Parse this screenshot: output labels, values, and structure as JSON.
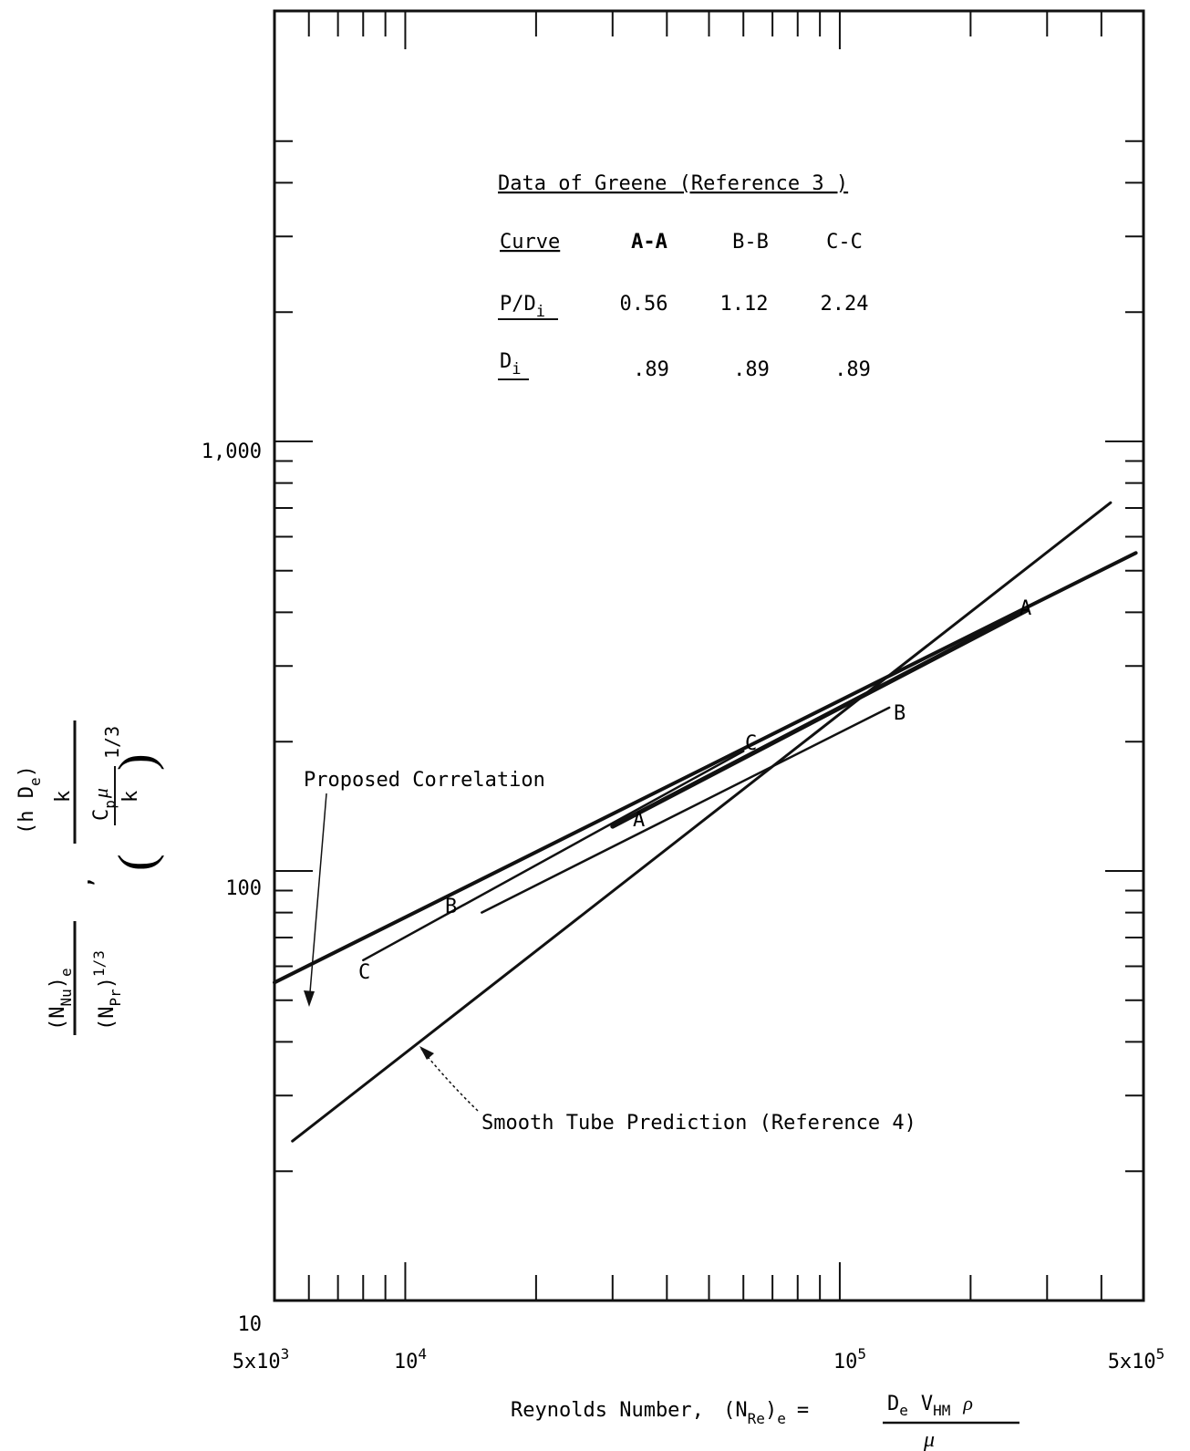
{
  "chart_data": {
    "type": "line",
    "x_scale": "log",
    "y_scale": "log",
    "xlim": [
      5000,
      500000
    ],
    "ylim": [
      10,
      5000
    ],
    "x_tick_labels": {
      "t1": {
        "value": 5000,
        "base": "5x10",
        "exp": "3"
      },
      "t2": {
        "value": 10000,
        "base": "10",
        "exp": "4"
      },
      "t3": {
        "value": 100000,
        "base": "10",
        "exp": "5"
      },
      "t4": {
        "value": 500000,
        "base": "5x10",
        "exp": "5"
      }
    },
    "y_tick_labels": {
      "t1": {
        "value": 10,
        "label": "10"
      },
      "t2": {
        "value": 100,
        "label": "100"
      },
      "t3": {
        "value": 1000,
        "label": "1,000"
      }
    },
    "xlabel": {
      "prefix": "Reynolds Number,",
      "n": "(N",
      "n_sub": "Re",
      "n_close": ")",
      "n_sub2": "e",
      "eq": "=",
      "d": "D",
      "d_sub": "e",
      "v": "V",
      "v_sub": "HM",
      "rho": "ρ",
      "mu": "μ"
    },
    "ylabel": {
      "num_a": "(N",
      "num_a_sub": "Nu",
      "num_a_close": ")",
      "num_a_sub2": "e",
      "den_a": "(N",
      "den_a_sub": "Pr",
      "den_a_close": ")",
      "den_a_exp": "1/3",
      "comma": ",",
      "num_b": "(h D",
      "num_b_sub": "e",
      "num_b_close": ")",
      "num_b_k": "k",
      "den_b_c": "C",
      "den_b_c_sub": "p",
      "den_b_mu": "μ",
      "den_b_k": "k",
      "den_b_exp": "1/3"
    },
    "legend_table": {
      "title": "Data of Greene (Reference 3 )",
      "header": {
        "label": "Curve",
        "cols": [
          "A-A",
          "B-B",
          "C-C"
        ]
      },
      "row_pd": {
        "label": "P/D",
        "label_sub": "i",
        "values": [
          "0.56",
          "1.12",
          "2.24"
        ]
      },
      "row_di": {
        "label": "D",
        "label_sub": "i",
        "values": [
          ".89",
          ".89",
          ".89"
        ]
      }
    },
    "series": [
      {
        "name": "A-A",
        "x": [
          30000,
          270000
        ],
        "y": [
          127,
          405
        ]
      },
      {
        "name": "B-B",
        "x": [
          15000,
          130000
        ],
        "y": [
          80,
          240
        ]
      },
      {
        "name": "C-C",
        "x": [
          8000,
          60000
        ],
        "y": [
          62,
          190
        ]
      },
      {
        "name": "Proposed Correlation",
        "x": [
          5000,
          480000
        ],
        "y": [
          55,
          550
        ]
      },
      {
        "name": "Smooth Tube Prediction (Reference 4)",
        "x": [
          5500,
          420000
        ],
        "y": [
          23.5,
          720
        ]
      }
    ],
    "curve_labels": [
      {
        "text": "A",
        "series": "A-A"
      },
      {
        "text": "A",
        "series": "A-A"
      },
      {
        "text": "B",
        "series": "B-B"
      },
      {
        "text": "B",
        "series": "B-B"
      },
      {
        "text": "C",
        "series": "C-C"
      },
      {
        "text": "C",
        "series": "C-C"
      }
    ],
    "annotations": {
      "proposed": "Proposed Correlation",
      "smooth": "Smooth Tube Prediction (Reference 4)"
    },
    "grid": false
  }
}
